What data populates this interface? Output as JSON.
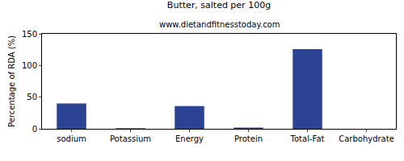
{
  "chart_data": {
    "type": "bar",
    "title": "Butter, salted per 100g",
    "subtitle": "www.dietandfitnesstoday.com",
    "y_label": "Percentage of RDA (%)",
    "categories": [
      "sodium",
      "Potassium",
      "Energy",
      "Protein",
      "Total-Fat",
      "Carbohydrate"
    ],
    "values": [
      40,
      1,
      36,
      2,
      126,
      0
    ],
    "color": "#2b4392",
    "ylim": [
      0,
      150
    ],
    "yticks": [
      0,
      50,
      100,
      150
    ],
    "grid": false
  }
}
